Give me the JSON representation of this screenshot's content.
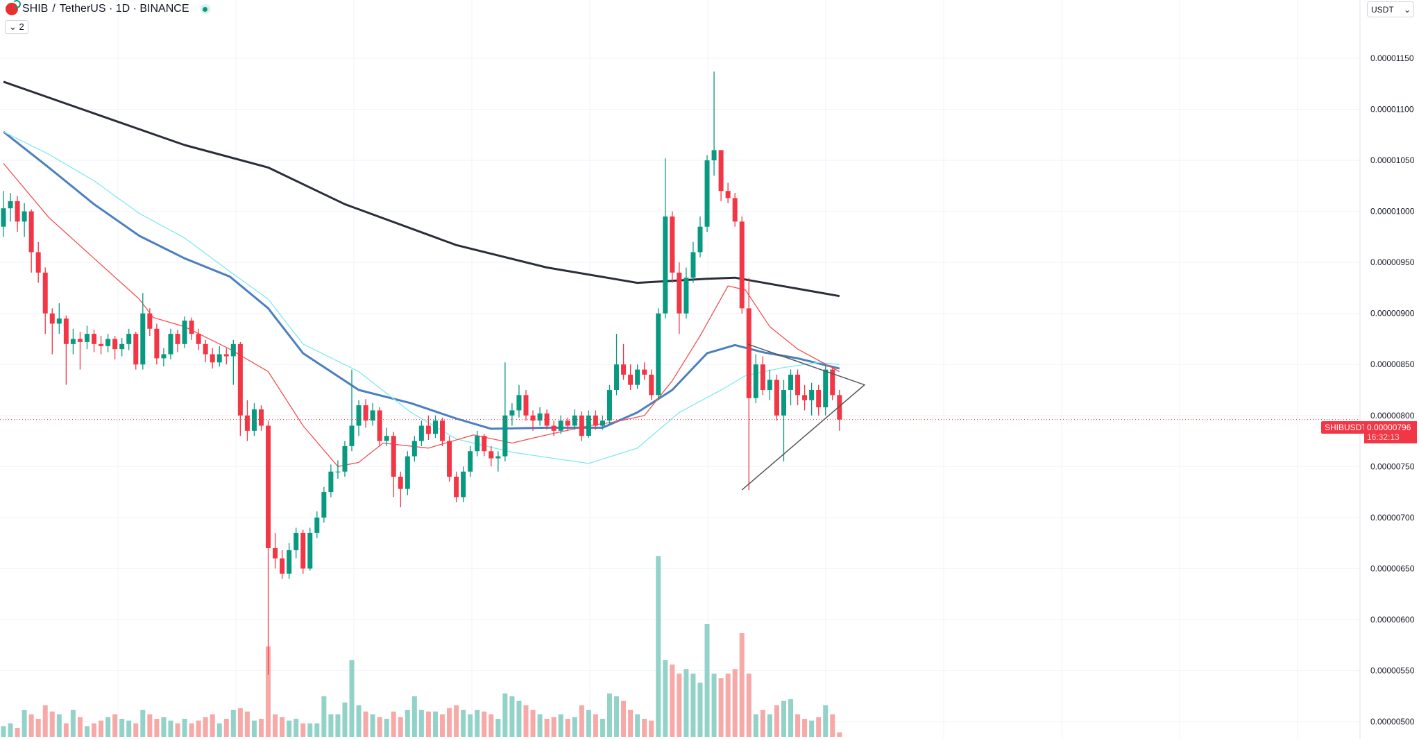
{
  "header": {
    "symbol": "SHIB",
    "separator": "/",
    "title_rest": "TetherUS · 1D · BINANCE",
    "indicators_collapsed_count": "2",
    "collapse_icon": "chevron-down-icon",
    "market_status": "open"
  },
  "currency_selector": {
    "value": "USDT"
  },
  "price_axis": {
    "labels": [
      "0.00001150",
      "0.00001100",
      "0.00001050",
      "0.00001000",
      "0.00000950",
      "0.00000900",
      "0.00000850",
      "0.00000800",
      "0.00000750",
      "0.00000700",
      "0.00000650",
      "0.00000600",
      "0.00000550",
      "0.00000500"
    ]
  },
  "last_price": {
    "symbol": "SHIBUSDT",
    "value": "0.00000796",
    "countdown": "16:32:13",
    "price": 7.96e-06
  },
  "colors": {
    "up": "#089981",
    "down": "#f23645",
    "vol_up": "#93d2c9",
    "vol_down": "#f7a9a7",
    "ma_long": "#2a2e39",
    "ma_blue": "#4a7fc1",
    "ma_cyan": "#7ee8f0",
    "ma_red": "#f0524f"
  },
  "chart_data": {
    "type": "candlestick",
    "ylim": [
      5e-06,
      1.15e-05
    ],
    "grid": true,
    "candles_ohlc": [
      [
        9.85e-06,
        1.02e-05,
        9.75e-06,
        1.003e-05
      ],
      [
        1.003e-05,
        1.018e-05,
        9.9e-06,
        1.01e-05
      ],
      [
        1.01e-05,
        1.015e-05,
        9.8e-06,
        9.9e-06
      ],
      [
        9.9e-06,
        1.008e-05,
        9.75e-06,
        1e-05
      ],
      [
        1e-05,
        1.002e-05,
        9.4e-06,
        9.6e-06
      ],
      [
        9.6e-06,
        9.7e-06,
        9.3e-06,
        9.4e-06
      ],
      [
        9.4e-06,
        9.45e-06,
        8.8e-06,
        9e-06
      ],
      [
        9e-06,
        9.05e-06,
        8.6e-06,
        8.9e-06
      ],
      [
        8.9e-06,
        9.1e-06,
        8.8e-06,
        8.95e-06
      ],
      [
        8.95e-06,
        8.98e-06,
        8.3e-06,
        8.7e-06
      ],
      [
        8.7e-06,
        8.85e-06,
        8.6e-06,
        8.75e-06
      ],
      [
        8.75e-06,
        8.82e-06,
        8.45e-06,
        8.72e-06
      ],
      [
        8.72e-06,
        8.88e-06,
        8.65e-06,
        8.8e-06
      ],
      [
        8.8e-06,
        8.84e-06,
        8.62e-06,
        8.7e-06
      ],
      [
        8.7e-06,
        8.78e-06,
        8.6e-06,
        8.68e-06
      ],
      [
        8.68e-06,
        8.8e-06,
        8.62e-06,
        8.75e-06
      ],
      [
        8.75e-06,
        8.78e-06,
        8.55e-06,
        8.65e-06
      ],
      [
        8.65e-06,
        8.76e-06,
        8.58e-06,
        8.7e-06
      ],
      [
        8.7e-06,
        8.85e-06,
        8.64e-06,
        8.8e-06
      ],
      [
        8.8e-06,
        8.82e-06,
        8.45e-06,
        8.5e-06
      ],
      [
        8.5e-06,
        9.2e-06,
        8.45e-06,
        9e-06
      ],
      [
        9e-06,
        9.05e-06,
        8.78e-06,
        8.85e-06
      ],
      [
        8.85e-06,
        8.9e-06,
        8.5e-06,
        8.56e-06
      ],
      [
        8.56e-06,
        8.66e-06,
        8.48e-06,
        8.6e-06
      ],
      [
        8.6e-06,
        8.85e-06,
        8.55e-06,
        8.8e-06
      ],
      [
        8.8e-06,
        8.84e-06,
        8.62e-06,
        8.7e-06
      ],
      [
        8.7e-06,
        8.97e-06,
        8.66e-06,
        8.93e-06
      ],
      [
        8.93e-06,
        8.96e-06,
        8.74e-06,
        8.8e-06
      ],
      [
        8.8e-06,
        8.85e-06,
        8.64e-06,
        8.7e-06
      ],
      [
        8.7e-06,
        8.74e-06,
        8.52e-06,
        8.6e-06
      ],
      [
        8.6e-06,
        8.66e-06,
        8.46e-06,
        8.52e-06
      ],
      [
        8.52e-06,
        8.68e-06,
        8.48e-06,
        8.6e-06
      ],
      [
        8.6e-06,
        8.66e-06,
        8.5e-06,
        8.58e-06
      ],
      [
        8.58e-06,
        8.74e-06,
        8.3e-06,
        8.7e-06
      ],
      [
        8.7e-06,
        8.72e-06,
        7.8e-06,
        8e-06
      ],
      [
        8e-06,
        8.15e-06,
        7.75e-06,
        7.85e-06
      ],
      [
        7.85e-06,
        8.12e-06,
        7.8e-06,
        8.06e-06
      ],
      [
        8.06e-06,
        8.1e-06,
        7.85e-06,
        7.9e-06
      ],
      [
        7.9e-06,
        7.95e-06,
        5.46e-06,
        6.7e-06
      ],
      [
        6.7e-06,
        6.85e-06,
        6.5e-06,
        6.6e-06
      ],
      [
        6.6e-06,
        6.68e-06,
        6.4e-06,
        6.45e-06
      ],
      [
        6.45e-06,
        6.75e-06,
        6.4e-06,
        6.68e-06
      ],
      [
        6.68e-06,
        6.9e-06,
        6.6e-06,
        6.85e-06
      ],
      [
        6.85e-06,
        6.88e-06,
        6.45e-06,
        6.5e-06
      ],
      [
        6.5e-06,
        6.9e-06,
        6.48e-06,
        6.85e-06
      ],
      [
        6.85e-06,
        7.06e-06,
        6.8e-06,
        7e-06
      ],
      [
        7e-06,
        7.3e-06,
        6.95e-06,
        7.25e-06
      ],
      [
        7.25e-06,
        7.52e-06,
        7.2e-06,
        7.45e-06
      ],
      [
        7.45e-06,
        7.56e-06,
        7.38e-06,
        7.45e-06
      ],
      [
        7.45e-06,
        7.75e-06,
        7.4e-06,
        7.7e-06
      ],
      [
        7.7e-06,
        8.45e-06,
        7.65e-06,
        7.9e-06
      ],
      [
        7.9e-06,
        8.15e-06,
        7.8e-06,
        8.1e-06
      ],
      [
        8.1e-06,
        8.16e-06,
        7.88e-06,
        7.95e-06
      ],
      [
        7.95e-06,
        8.12e-06,
        7.9e-06,
        8.05e-06
      ],
      [
        8.05e-06,
        8.08e-06,
        7.7e-06,
        7.75e-06
      ],
      [
        7.75e-06,
        7.88e-06,
        7.7e-06,
        7.8e-06
      ],
      [
        7.8e-06,
        7.84e-06,
        7.2e-06,
        7.4e-06
      ],
      [
        7.4e-06,
        7.45e-06,
        7.1e-06,
        7.28e-06
      ],
      [
        7.28e-06,
        7.65e-06,
        7.22e-06,
        7.6e-06
      ],
      [
        7.6e-06,
        7.8e-06,
        7.55e-06,
        7.75e-06
      ],
      [
        7.75e-06,
        7.95e-06,
        7.7e-06,
        7.9e-06
      ],
      [
        7.9e-06,
        8e-06,
        7.76e-06,
        7.82e-06
      ],
      [
        7.82e-06,
        8e-06,
        7.78e-06,
        7.95e-06
      ],
      [
        7.95e-06,
        7.98e-06,
        7.7e-06,
        7.75e-06
      ],
      [
        7.75e-06,
        7.8e-06,
        7.35e-06,
        7.4e-06
      ],
      [
        7.4e-06,
        7.45e-06,
        7.15e-06,
        7.2e-06
      ],
      [
        7.2e-06,
        7.5e-06,
        7.15e-06,
        7.45e-06
      ],
      [
        7.45e-06,
        7.7e-06,
        7.4e-06,
        7.65e-06
      ],
      [
        7.65e-06,
        7.85e-06,
        7.6e-06,
        7.8e-06
      ],
      [
        7.8e-06,
        7.82e-06,
        7.6e-06,
        7.65e-06
      ],
      [
        7.65e-06,
        7.7e-06,
        7.5e-06,
        7.58e-06
      ],
      [
        7.58e-06,
        7.65e-06,
        7.45e-06,
        7.6e-06
      ],
      [
        7.6e-06,
        8.52e-06,
        7.55e-06,
        8e-06
      ],
      [
        8e-06,
        8.12e-06,
        7.9e-06,
        8.05e-06
      ],
      [
        8.05e-06,
        8.3e-06,
        7.98e-06,
        8.2e-06
      ],
      [
        8.2e-06,
        8.25e-06,
        7.95e-06,
        8e-06
      ],
      [
        8e-06,
        8.05e-06,
        7.85e-06,
        7.95e-06
      ],
      [
        7.95e-06,
        8.08e-06,
        7.9e-06,
        8.02e-06
      ],
      [
        8.02e-06,
        8.06e-06,
        7.86e-06,
        7.9e-06
      ],
      [
        7.9e-06,
        7.95e-06,
        7.8e-06,
        7.85e-06
      ],
      [
        7.85e-06,
        8e-06,
        7.82e-06,
        7.95e-06
      ],
      [
        7.95e-06,
        7.98e-06,
        7.85e-06,
        7.9e-06
      ],
      [
        7.9e-06,
        8.06e-06,
        7.86e-06,
        8e-06
      ],
      [
        8e-06,
        8.04e-06,
        7.75e-06,
        7.8e-06
      ],
      [
        7.8e-06,
        8.05e-06,
        7.78e-06,
        8e-06
      ],
      [
        8e-06,
        8.05e-06,
        7.86e-06,
        7.9e-06
      ],
      [
        7.9e-06,
        8e-06,
        7.86e-06,
        7.95e-06
      ],
      [
        7.95e-06,
        8.3e-06,
        7.9e-06,
        8.25e-06
      ],
      [
        8.25e-06,
        8.8e-06,
        8.2e-06,
        8.5e-06
      ],
      [
        8.5e-06,
        8.7e-06,
        8.35e-06,
        8.4e-06
      ],
      [
        8.4e-06,
        8.5e-06,
        8.25e-06,
        8.3e-06
      ],
      [
        8.3e-06,
        8.5e-06,
        8.26e-06,
        8.45e-06
      ],
      [
        8.45e-06,
        8.52e-06,
        8.35e-06,
        8.4e-06
      ],
      [
        8.4e-06,
        8.45e-06,
        8.15e-06,
        8.2e-06
      ],
      [
        8.2e-06,
        9.05e-06,
        8.15e-06,
        9e-06
      ],
      [
        9e-06,
        1.052e-05,
        8.95e-06,
        9.95e-06
      ],
      [
        9.95e-06,
        1e-05,
        9.3e-06,
        9.4e-06
      ],
      [
        9.4e-06,
        9.5e-06,
        8.8e-06,
        9e-06
      ],
      [
        9e-06,
        9.45e-06,
        8.95e-06,
        9.35e-06
      ],
      [
        9.35e-06,
        9.7e-06,
        9.3e-06,
        9.6e-06
      ],
      [
        9.6e-06,
        9.95e-06,
        9.55e-06,
        9.85e-06
      ],
      [
        9.85e-06,
        1.055e-05,
        9.8e-06,
        1.05e-05
      ],
      [
        1.05e-05,
        1.137e-05,
        1.035e-05,
        1.06e-05
      ],
      [
        1.06e-05,
        1.06e-05,
        1.01e-05,
        1.02e-05
      ],
      [
        1.02e-05,
        1.028e-05,
        1.008e-05,
        1.013e-05
      ],
      [
        1.013e-05,
        1.018e-05,
        9.85e-06,
        9.9e-06
      ],
      [
        9.9e-06,
        9.95e-06,
        9e-06,
        9.05e-06
      ],
      [
        9.05e-06,
        9.35e-06,
        7.27e-06,
        8.17e-06
      ],
      [
        8.17e-06,
        8.6e-06,
        8.12e-06,
        8.5e-06
      ],
      [
        8.5e-06,
        8.58e-06,
        8.2e-06,
        8.25e-06
      ],
      [
        8.25e-06,
        8.45e-06,
        8.15e-06,
        8.35e-06
      ],
      [
        8.35e-06,
        8.4e-06,
        7.95e-06,
        8e-06
      ],
      [
        8e-06,
        8.35e-06,
        7.55e-06,
        8.25e-06
      ],
      [
        8.25e-06,
        8.45e-06,
        8.1e-06,
        8.4e-06
      ],
      [
        8.4e-06,
        8.45e-06,
        8.1e-06,
        8.2e-06
      ],
      [
        8.2e-06,
        8.3e-06,
        8.05e-06,
        8.15e-06
      ],
      [
        8.15e-06,
        8.32e-06,
        8e-06,
        8.25e-06
      ],
      [
        8.25e-06,
        8.3e-06,
        8e-06,
        8.08e-06
      ],
      [
        8.08e-06,
        8.5e-06,
        8e-06,
        8.45e-06
      ],
      [
        8.45e-06,
        8.48e-06,
        8.15e-06,
        8.2e-06
      ],
      [
        8.2e-06,
        8.25e-06,
        7.85e-06,
        7.96e-06
      ]
    ],
    "volume_relative": [
      12,
      15,
      10,
      30,
      25,
      20,
      35,
      28,
      25,
      15,
      30,
      22,
      12,
      15,
      18,
      22,
      25,
      20,
      18,
      15,
      30,
      25,
      20,
      22,
      18,
      15,
      20,
      15,
      18,
      22,
      25,
      15,
      20,
      30,
      32,
      28,
      18,
      20,
      100,
      25,
      22,
      18,
      20,
      15,
      15,
      15,
      45,
      25,
      25,
      38,
      85,
      35,
      28,
      25,
      22,
      20,
      28,
      22,
      30,
      45,
      30,
      28,
      28,
      25,
      32,
      35,
      30,
      25,
      30,
      28,
      25,
      20,
      48,
      45,
      40,
      35,
      30,
      25,
      20,
      22,
      25,
      20,
      22,
      35,
      30,
      25,
      20,
      48,
      45,
      40,
      30,
      25,
      20,
      18,
      200,
      85,
      80,
      70,
      75,
      70,
      60,
      125,
      70,
      65,
      70,
      75,
      115,
      70,
      25,
      30,
      25,
      35,
      40,
      42,
      25,
      20,
      18,
      22,
      35,
      25,
      5
    ],
    "moving_averages": [
      {
        "color_key": "ma_long",
        "points": [
          [
            0,
            1.127e-05
          ],
          [
            13,
            1.096e-05
          ],
          [
            26,
            1.065e-05
          ],
          [
            38,
            1.043e-05
          ],
          [
            49,
            1.007e-05
          ],
          [
            65,
            9.67e-06
          ],
          [
            78,
            9.45e-06
          ],
          [
            91,
            9.3e-06
          ],
          [
            101,
            9.34e-06
          ],
          [
            105,
            9.35e-06
          ],
          [
            120,
            9.17e-06
          ]
        ]
      },
      {
        "color_key": "ma_blue",
        "points": [
          [
            0,
            1.078e-05
          ],
          [
            6.5,
            1.043e-05
          ],
          [
            13,
            1.007e-05
          ],
          [
            19.5,
            9.76e-06
          ],
          [
            26,
            9.54e-06
          ],
          [
            32.5,
            9.36e-06
          ],
          [
            38,
            9.05e-06
          ],
          [
            43,
            8.61e-06
          ],
          [
            51,
            8.25e-06
          ],
          [
            58.5,
            8.12e-06
          ],
          [
            65,
            7.97e-06
          ],
          [
            70,
            7.87e-06
          ],
          [
            78,
            7.88e-06
          ],
          [
            86,
            7.88e-06
          ],
          [
            91,
            8.03e-06
          ],
          [
            96,
            8.25e-06
          ],
          [
            101,
            8.61e-06
          ],
          [
            105,
            8.69e-06
          ],
          [
            109,
            8.62e-06
          ],
          [
            114,
            8.56e-06
          ],
          [
            120,
            8.46e-06
          ]
        ]
      },
      {
        "color_key": "ma_cyan",
        "points": [
          [
            0,
            1.078e-05
          ],
          [
            6.5,
            1.056e-05
          ],
          [
            13,
            1.03e-05
          ],
          [
            19.5,
            9.98e-06
          ],
          [
            26,
            9.74e-06
          ],
          [
            32.5,
            9.41e-06
          ],
          [
            38,
            9.14e-06
          ],
          [
            43,
            8.7e-06
          ],
          [
            51,
            8.43e-06
          ],
          [
            58.5,
            8.03e-06
          ],
          [
            65,
            7.77e-06
          ],
          [
            73,
            7.64e-06
          ],
          [
            78,
            7.59e-06
          ],
          [
            84,
            7.53e-06
          ],
          [
            91,
            7.68e-06
          ],
          [
            97,
            8.03e-06
          ],
          [
            103,
            8.25e-06
          ],
          [
            106.5,
            8.39e-06
          ],
          [
            112,
            8.47e-06
          ],
          [
            117,
            8.52e-06
          ],
          [
            120,
            8.5e-06
          ]
        ]
      },
      {
        "color_key": "ma_red",
        "points": [
          [
            0,
            1.047e-05
          ],
          [
            6.5,
            9.94e-06
          ],
          [
            13,
            9.54e-06
          ],
          [
            19.5,
            9.14e-06
          ],
          [
            21.5,
            8.96e-06
          ],
          [
            26,
            8.87e-06
          ],
          [
            32.5,
            8.65e-06
          ],
          [
            38,
            8.43e-06
          ],
          [
            43,
            7.9e-06
          ],
          [
            48,
            7.5e-06
          ],
          [
            51,
            7.54e-06
          ],
          [
            54.5,
            7.73e-06
          ],
          [
            61,
            7.68e-06
          ],
          [
            67.5,
            7.81e-06
          ],
          [
            73,
            7.73e-06
          ],
          [
            78,
            7.81e-06
          ],
          [
            84,
            7.9e-06
          ],
          [
            88,
            7.94e-06
          ],
          [
            92,
            8e-06
          ],
          [
            96,
            8.34e-06
          ],
          [
            100,
            8.78e-06
          ],
          [
            104,
            9.27e-06
          ],
          [
            106.5,
            9.23e-06
          ],
          [
            110,
            8.87e-06
          ],
          [
            114,
            8.65e-06
          ],
          [
            120,
            8.43e-06
          ]
        ]
      }
    ],
    "drawing_triangle": [
      [
        106,
        7.27e-06
      ],
      [
        123.6,
        8.3e-06
      ],
      [
        106.8,
        8.7e-06
      ]
    ]
  }
}
